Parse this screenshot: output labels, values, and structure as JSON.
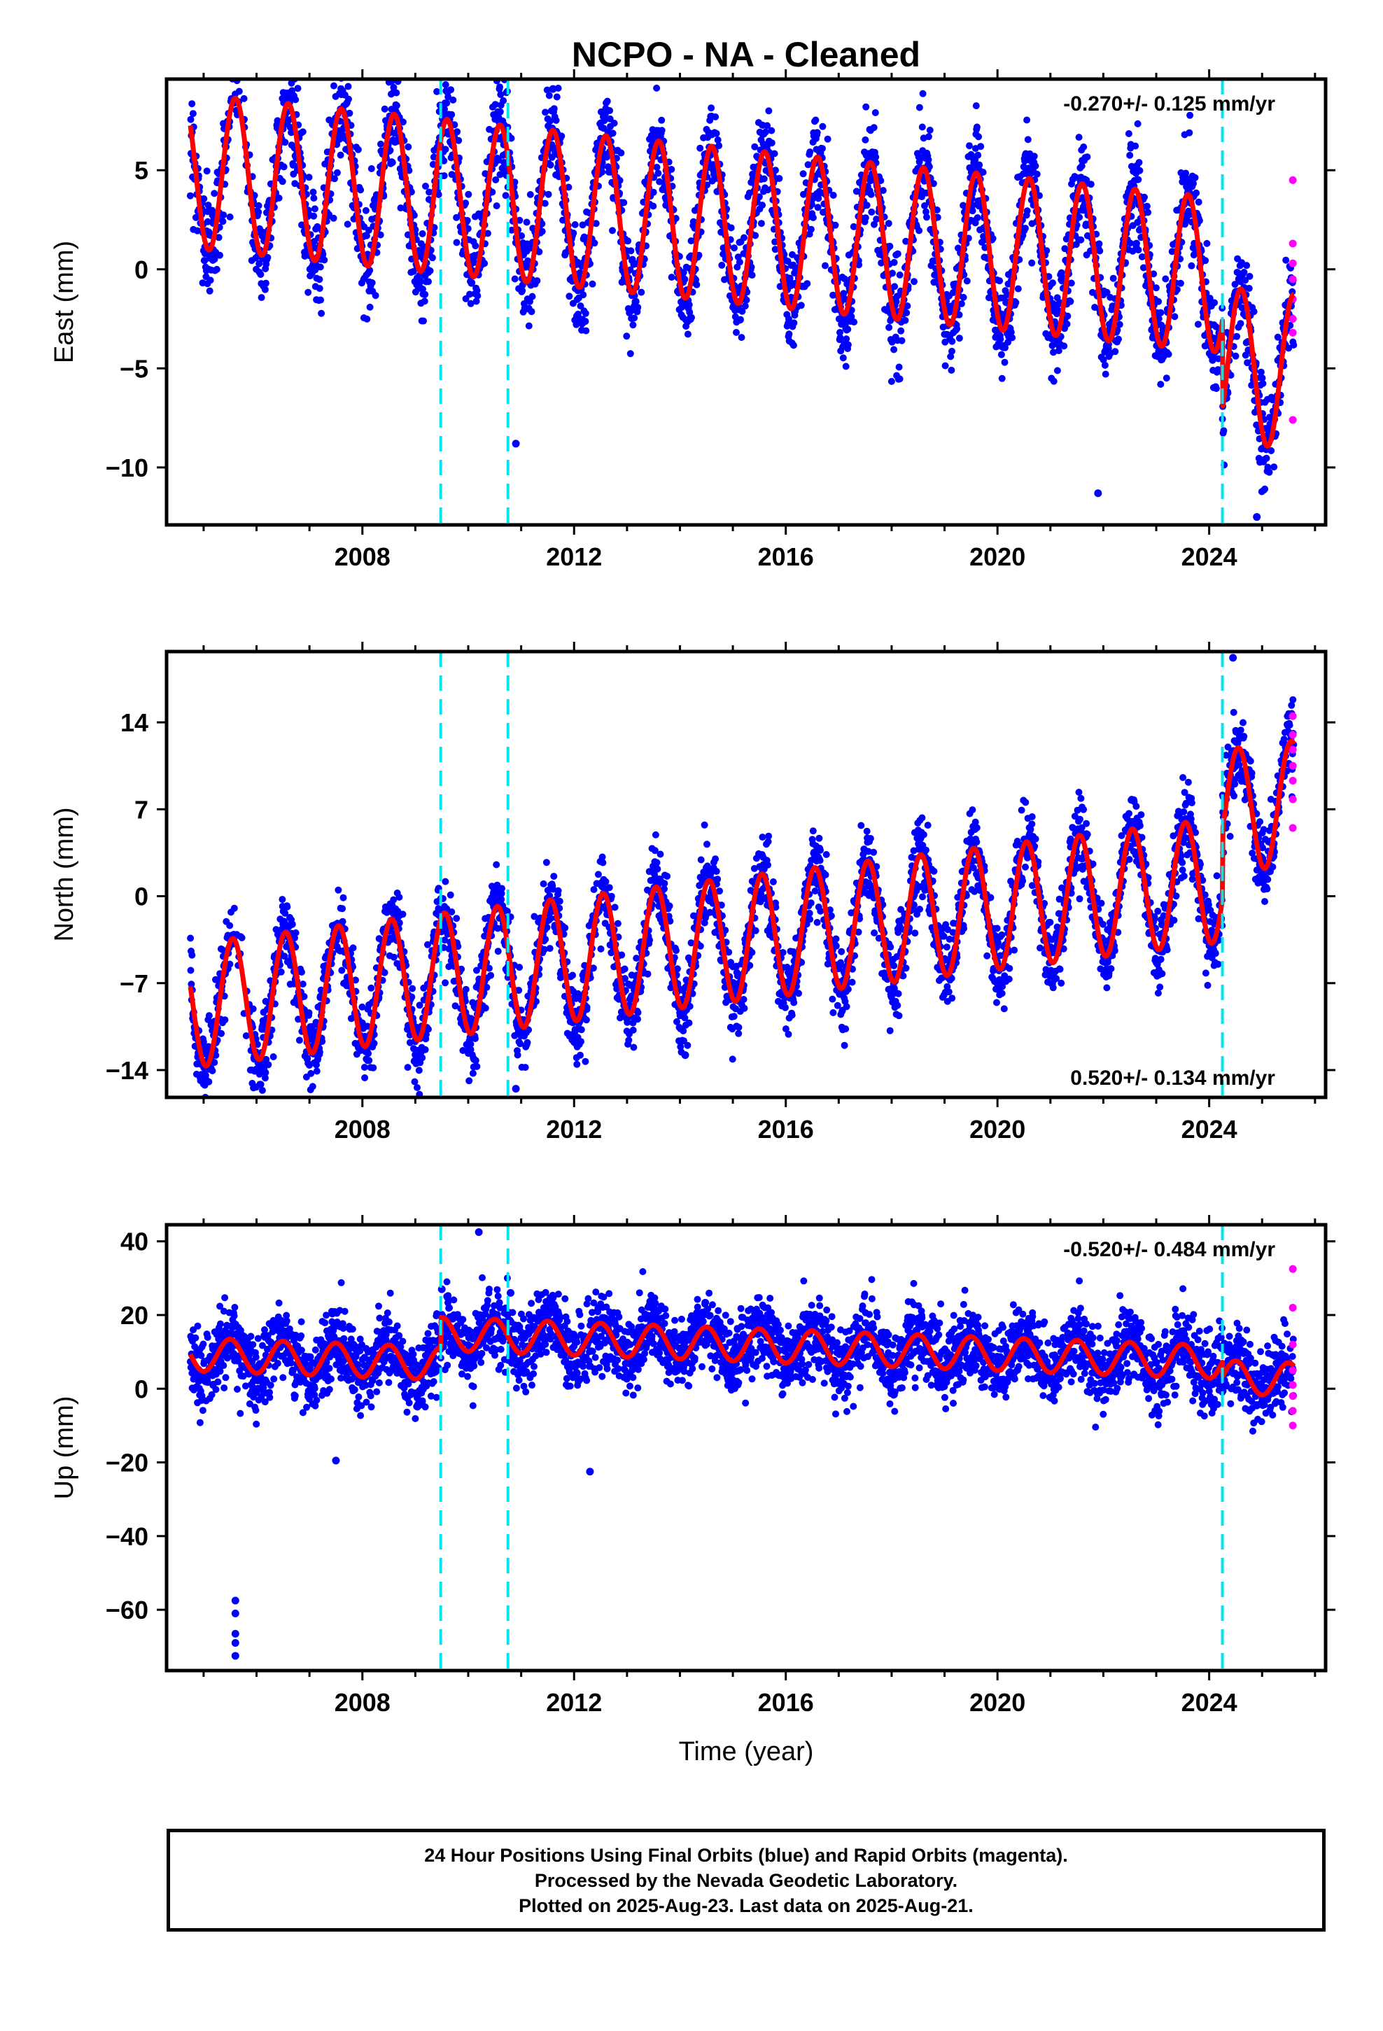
{
  "title": "NCPO  - NA - Cleaned",
  "footer": {
    "line1": "24 Hour Positions Using Final Orbits (blue) and Rapid Orbits (magenta).",
    "line2": "Processed by the Nevada Geodetic Laboratory.",
    "line3": "Plotted on 2025-Aug-23. Last data on 2025-Aug-21."
  },
  "colors": {
    "final_orbits": "#0000ff",
    "rapid_orbits": "#ff00ff",
    "model": "#ff0000",
    "offset_lines": "#00e5ee"
  },
  "chart_data": [
    {
      "type": "scatter",
      "ylabel": "East (mm)",
      "xlabel": "",
      "xlim": [
        2004.3,
        2026.2
      ],
      "ylim": [
        -12.9,
        9.6
      ],
      "xticks": [
        2008,
        2012,
        2016,
        2020,
        2024
      ],
      "yticks": [
        5,
        0,
        -5,
        -10
      ],
      "ytick_labels": [
        "5",
        "0",
        "−5",
        "−10"
      ],
      "annotation": "-0.270+/- 0.125 mm/yr",
      "annotation_position": "top-right",
      "offsets": [
        2009.48,
        2010.75,
        2024.25
      ],
      "data_span": [
        2004.75,
        2025.6
      ],
      "model": {
        "rate_mm_yr": -0.27,
        "intercept_mm": 2.2,
        "annual_amp_mm": 3.9,
        "phase_peak_yr": 0.6,
        "scatter_mm": 1.3,
        "jumps": [
          {
            "t": 2024.25,
            "dy": -4.5
          }
        ]
      },
      "outliers": [
        [
          2011.6,
          9.1
        ],
        [
          2010.9,
          -8.8
        ],
        [
          2021.9,
          -11.3
        ],
        [
          2024.9,
          -12.5
        ]
      ],
      "rapid": {
        "t": 2025.58,
        "values": [
          4.5,
          1.3,
          0.3,
          -0.5,
          -1.5,
          -2.5,
          -3.2,
          -7.6
        ]
      }
    },
    {
      "type": "scatter",
      "ylabel": "North (mm)",
      "xlabel": "",
      "xlim": [
        2004.3,
        2026.2
      ],
      "ylim": [
        -16.2,
        19.7
      ],
      "xticks": [
        2008,
        2012,
        2016,
        2020,
        2024
      ],
      "yticks": [
        14,
        7,
        0,
        -7,
        -14
      ],
      "ytick_labels": [
        "14",
        "7",
        "0",
        "−7",
        "−14"
      ],
      "annotation": "0.520+/- 0.134 mm/yr",
      "annotation_position": "bottom-right",
      "offsets": [
        2009.48,
        2010.75,
        2024.25
      ],
      "data_span": [
        2004.75,
        2025.6
      ],
      "model": {
        "rate_mm_yr": 0.52,
        "intercept_mm": -3.5,
        "annual_amp_mm": 5.0,
        "phase_peak_yr": 0.55,
        "scatter_mm": 1.6,
        "jumps": [
          {
            "t": 2024.25,
            "dy": 5.5
          }
        ]
      },
      "outliers": [
        [
          2010.9,
          -15.5
        ],
        [
          2014.1,
          -12.8
        ],
        [
          2020.0,
          -7.0
        ],
        [
          2024.45,
          19.2
        ]
      ],
      "rapid": {
        "t": 2025.58,
        "values": [
          14.5,
          13.0,
          11.8,
          10.5,
          9.3,
          7.8,
          5.5
        ]
      }
    },
    {
      "type": "scatter",
      "ylabel": "Up (mm)",
      "xlabel": "Time (year)",
      "xlim": [
        2004.3,
        2026.2
      ],
      "ylim": [
        -76.5,
        44.5
      ],
      "xticks": [
        2008,
        2012,
        2016,
        2020,
        2024
      ],
      "yticks": [
        40,
        20,
        0,
        -20,
        -40,
        -60
      ],
      "ytick_labels": [
        "40",
        "20",
        "0",
        "−20",
        "−40",
        "−60"
      ],
      "annotation": "-0.520+/- 0.484 mm/yr",
      "annotation_position": "top-right",
      "offsets": [
        2009.48,
        2010.75,
        2024.25
      ],
      "data_span": [
        2004.75,
        2025.6
      ],
      "model": {
        "rate_mm_yr": -0.52,
        "intercept_mm": 4.0,
        "annual_amp_mm": 4.5,
        "phase_peak_yr": 0.5,
        "scatter_mm": 5.0,
        "jumps": [
          {
            "t": 2009.48,
            "dy": 8.0
          },
          {
            "t": 2024.25,
            "dy": -4.0
          }
        ]
      },
      "outliers": [
        [
          2005.6,
          -57.5
        ],
        [
          2005.6,
          -61.0
        ],
        [
          2005.6,
          -66.5
        ],
        [
          2005.6,
          -69.0
        ],
        [
          2005.6,
          -72.5
        ],
        [
          2010.2,
          42.5
        ],
        [
          2009.5,
          27.0
        ],
        [
          2010.8,
          26.0
        ],
        [
          2012.3,
          -22.5
        ],
        [
          2007.5,
          -19.5
        ]
      ],
      "rapid": {
        "t": 2025.58,
        "values": [
          32.5,
          22.0,
          12.0,
          5.0,
          1.0,
          -2.0,
          -6.0,
          -10.0
        ]
      }
    }
  ]
}
